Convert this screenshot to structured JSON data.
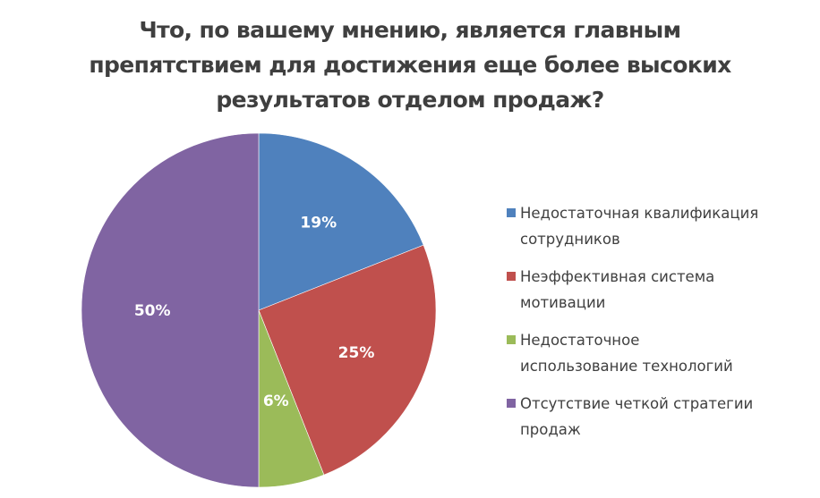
{
  "title_lines": [
    "Что, по вашему мнению, является главным",
    "препятствием для достижения еще более высоких",
    "результатов отделом продаж?"
  ],
  "legend": [
    {
      "label": "Недостаточная квалификация\nсотрудников",
      "color": "#4f81bd"
    },
    {
      "label": "Неэффективная система\nмотивации",
      "color": "#c0504d"
    },
    {
      "label": "Недостаточное\nиспользование технологий",
      "color": "#9bbb59"
    },
    {
      "label": "Отсутствие четкой стратегии\nпродаж",
      "color": "#8064a2"
    }
  ],
  "chart_data": {
    "type": "pie",
    "title": "Что, по вашему мнению, является главным препятствием для достижения еще более высоких результатов отделом продаж?",
    "categories": [
      "Недостаточная квалификация сотрудников",
      "Неэффективная система мотивации",
      "Недостаточное использование технологий",
      "Отсутствие четкой стратегии продаж"
    ],
    "values": [
      19,
      25,
      6,
      50
    ],
    "labels": [
      "19%",
      "25%",
      "6%",
      "50%"
    ],
    "colors": [
      "#4f81bd",
      "#c0504d",
      "#9bbb59",
      "#8064a2"
    ],
    "start_angle": "12 o'clock, clockwise",
    "legend_position": "right"
  }
}
